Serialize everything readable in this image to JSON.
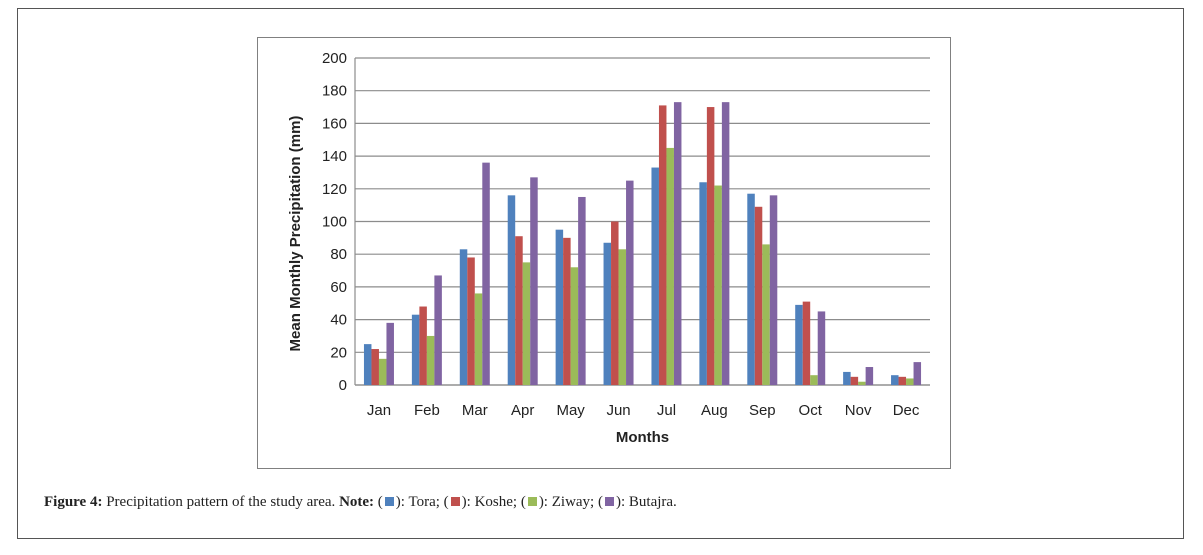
{
  "chart_data": {
    "type": "bar",
    "title": "",
    "xlabel": "Months",
    "ylabel": "Mean Monthly Precipitation (mm)",
    "ylim": [
      0,
      200
    ],
    "yticks": [
      "0",
      "20",
      "40",
      "60",
      "80",
      "100",
      "120",
      "140",
      "160",
      "180",
      "200"
    ],
    "grid": true,
    "categories": [
      "Jan",
      "Feb",
      "Mar",
      "Apr",
      "May",
      "Jun",
      "Jul",
      "Aug",
      "Sep",
      "Oct",
      "Nov",
      "Dec"
    ],
    "series": [
      {
        "name": "Tora",
        "color": "#4f81bd",
        "values": [
          25,
          43,
          83,
          116,
          95,
          87,
          133,
          124,
          117,
          49,
          8,
          6
        ]
      },
      {
        "name": "Koshe",
        "color": "#c0504d",
        "values": [
          22,
          48,
          78,
          91,
          90,
          100,
          171,
          170,
          109,
          51,
          5,
          5
        ]
      },
      {
        "name": "Ziway",
        "color": "#9bbb59",
        "values": [
          16,
          30,
          56,
          75,
          72,
          83,
          145,
          122,
          86,
          6,
          2,
          4
        ]
      },
      {
        "name": "Butajra",
        "color": "#8064a2",
        "values": [
          38,
          67,
          136,
          127,
          115,
          125,
          173,
          173,
          116,
          45,
          11,
          14
        ]
      }
    ]
  },
  "caption": {
    "label": "Figure 4:",
    "text": " Precipitation pattern of the study area. ",
    "note_label": "Note:",
    "open_paren": " (",
    "legend_sep": "): ",
    "entries": [
      "Tora;",
      "Koshe;",
      "Ziway;",
      "Butajra."
    ]
  }
}
